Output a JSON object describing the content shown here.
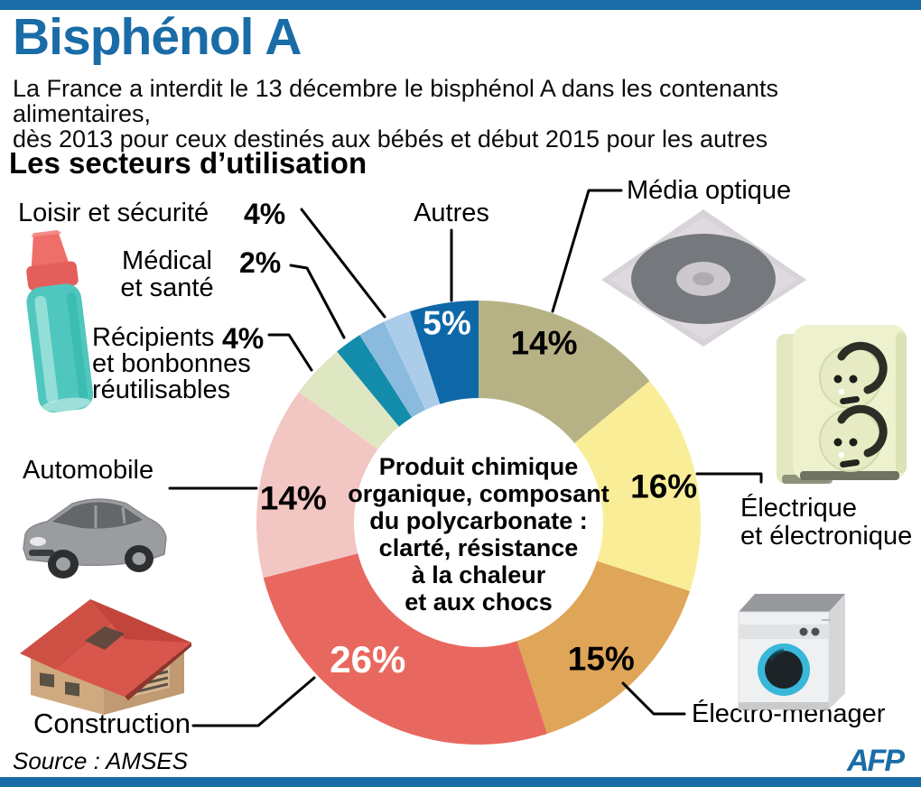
{
  "header": {
    "title": "Bisphénol A",
    "subtitle_line1": "La France a interdit le 13 décembre le bisphénol A dans les contenants alimentaires,",
    "subtitle_line2": "dès 2013 pour ceux destinés aux bébés et début 2015 pour les autres",
    "section_title": "Les secteurs d’utilisation"
  },
  "colors": {
    "accent_blue": "#1a6ca7"
  },
  "chart_data": {
    "type": "pie",
    "donut": true,
    "title": "Les secteurs d’utilisation",
    "start_angle_deg": 0,
    "direction": "clockwise",
    "segments": [
      {
        "id": "media-optique",
        "name": "Média optique",
        "value": 14,
        "pct_label": "14%",
        "color": "#b7b286",
        "pct_color": "#000000",
        "pct_angle": 20,
        "pct_r": 212
      },
      {
        "id": "electrique",
        "name": "Électrique et électronique",
        "value": 16,
        "pct_label": "16%",
        "color": "#f9ee97",
        "pct_color": "#000000",
        "pct_angle": 79,
        "pct_r": 209
      },
      {
        "id": "electromenager",
        "name": "Électro-ménager",
        "value": 15,
        "pct_label": "15%",
        "color": "#dfa558",
        "pct_color": "#000000",
        "pct_angle": 138,
        "pct_r": 203
      },
      {
        "id": "construction",
        "name": "Construction",
        "value": 26,
        "pct_label": "26%",
        "color": "#e8685f",
        "pct_color": "#ffffff",
        "pct_angle": 219,
        "pct_r": 195,
        "pct_size": 42
      },
      {
        "id": "automobile",
        "name": "Automobile",
        "value": 14,
        "pct_label": "14%",
        "color": "#f2c6c3",
        "pct_color": "#000000",
        "pct_angle": 277.5,
        "pct_r": 207
      },
      {
        "id": "recipients",
        "name": "Récipients et bonbonnes réutilisables",
        "value": 4,
        "pct_label": "4%",
        "color": "#dfe6c2"
      },
      {
        "id": "medical",
        "name": "Médical et santé",
        "value": 2,
        "pct_label": "2%",
        "color": "#148cab"
      },
      {
        "id": "loisir",
        "name": "Loisir et sécurité",
        "value": 4,
        "pct_label": "4%",
        "color": "#8abade",
        "color2": "#abcdea"
      },
      {
        "id": "autres",
        "name": "Autres",
        "value": 5,
        "pct_label": "5%",
        "color": "#0e68a8",
        "pct_color": "#ffffff",
        "pct_angle": 351,
        "pct_r": 224
      }
    ]
  },
  "center_text": {
    "lines": [
      "Produit chimique",
      "organique, composant",
      "du polycarbonate :",
      "clarté, résistance",
      "à la chaleur",
      "et aux chocs"
    ]
  },
  "labels": {
    "loisir": {
      "text": "Loisir et sécurité",
      "pct": "4%"
    },
    "medical": {
      "line1": "Médical",
      "line2": "et santé",
      "pct": "2%"
    },
    "recipients": {
      "line1": "Récipients",
      "line2": "et bonbonnes",
      "line3": "réutilisables",
      "pct": "4%"
    },
    "autres": {
      "text": "Autres"
    },
    "media_optique": {
      "text": "Média optique"
    },
    "electrique": {
      "line1": "Électrique",
      "line2": "et électronique"
    },
    "electromenager": {
      "text": "Électro-ménager"
    },
    "construction": {
      "text": "Construction"
    },
    "automobile": {
      "text": "Automobile"
    }
  },
  "icons": [
    "baby-bottle-icon",
    "cd-case-icon",
    "power-socket-icon",
    "washing-machine-icon",
    "house-icon",
    "car-icon"
  ],
  "footer": {
    "source": "Source : AMSES",
    "afp_logo": "AFP"
  }
}
